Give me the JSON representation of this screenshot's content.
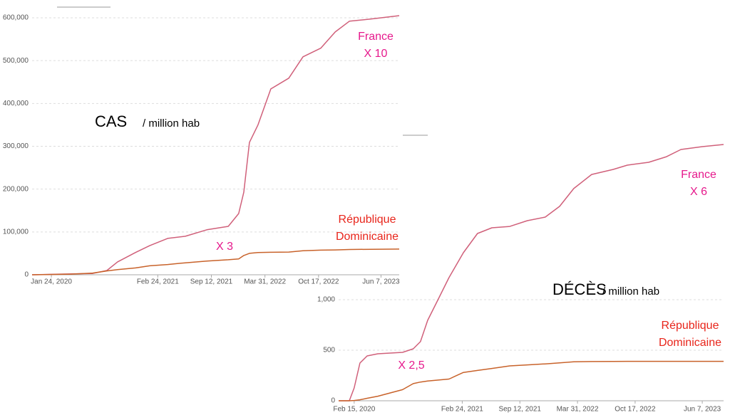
{
  "chart_data": [
    {
      "type": "line",
      "xlim": [
        "Nov 13, 2019",
        "Aug 14, 2023"
      ],
      "xticks": [
        "Jan 24, 2020",
        "Feb 24, 2021",
        "Sep 12, 2021",
        "Mar 31, 2022",
        "Oct 17, 2022",
        "Jun 7, 2023"
      ],
      "ylim": [
        0,
        600000
      ],
      "yticks": [
        0,
        {
          "value": 100000,
          "label": "100,000"
        },
        {
          "value": 200000,
          "label": "200,000"
        },
        {
          "value": 300000,
          "label": "300,000"
        },
        {
          "value": 400000,
          "label": "400,000"
        },
        {
          "value": 500000,
          "label": "500,000"
        },
        {
          "value": 600000,
          "label": "600,000"
        }
      ],
      "grid": true,
      "x": [
        "Nov 13, 2019",
        "Apr 7, 2020",
        "Jun 26, 2020",
        "Aug 18, 2020",
        "Sep 27, 2020",
        "Dec 3, 2020",
        "Jan 25, 2021",
        "Apr 2, 2021",
        "Jun 7, 2021",
        "Aug 26, 2021",
        "Nov 14, 2021",
        "Dec 23, 2021",
        "Jan 11, 2022",
        "Feb 1, 2022",
        "Mar 5, 2022",
        "Apr 22, 2022",
        "Jun 28, 2022",
        "Aug 20, 2022",
        "Oct 25, 2022",
        "Dec 18, 2022",
        "Feb 9, 2023",
        "Apr 29, 2023",
        "Aug 14, 2023"
      ],
      "series": [
        {
          "color": "#d0607a",
          "values": [
            0,
            2000,
            3000,
            10000,
            30000,
            52000,
            68000,
            85000,
            90000,
            105000,
            113000,
            143000,
            193000,
            309000,
            350000,
            434000,
            459000,
            509000,
            529000,
            567000,
            592000,
            597000,
            605000
          ]
        },
        {
          "color": "#c8622a",
          "values": [
            0,
            1500,
            4000,
            9000,
            12000,
            16000,
            21000,
            24000,
            28000,
            32000,
            35000,
            37000,
            45000,
            50000,
            52000,
            52500,
            53000,
            56000,
            57500,
            58000,
            59000,
            59500,
            60000
          ]
        }
      ],
      "annotations": [
        {
          "text": "CAS",
          "color": "#000000"
        },
        {
          "text": "/ million hab",
          "color": "#000000"
        },
        {
          "text": "France",
          "color": "#e6198c"
        },
        {
          "text": "X 10",
          "color": "#e6198c"
        },
        {
          "text": "République",
          "color": "#e8251b"
        },
        {
          "text": "Dominicaine",
          "color": "#e8251b"
        },
        {
          "text": "X 3",
          "color": "#e6198c"
        }
      ]
    },
    {
      "type": "line",
      "xlim": [
        "Dec 23, 2019",
        "Aug 20, 2023"
      ],
      "xticks": [
        "Feb 15, 2020",
        "Feb 24, 2021",
        "Sep 12, 2021",
        "Mar 31, 2022",
        "Oct 17, 2022",
        "Jun 7, 2023"
      ],
      "ylim": [
        0,
        2500
      ],
      "yticks": [
        0,
        500,
        {
          "value": 1000,
          "label": "1,000"
        }
      ],
      "grid": true,
      "x": [
        "Dec 23, 2019",
        "Jan 29, 2020",
        "Feb 15, 2020",
        "Mar 6, 2020",
        "Mar 31, 2020",
        "May 7, 2020",
        "Aug 1, 2020",
        "Sep 7, 2020",
        "Oct 2, 2020",
        "Oct 27, 2020",
        "Dec 3, 2020",
        "Jan 9, 2021",
        "Feb 28, 2021",
        "Apr 18, 2021",
        "Jun 7, 2021",
        "Aug 8, 2021",
        "Oct 8, 2021",
        "Dec 9, 2021",
        "Jan 28, 2022",
        "Mar 18, 2022",
        "May 19, 2022",
        "Aug 2, 2022",
        "Sep 20, 2022",
        "Dec 3, 2022",
        "Feb 3, 2023",
        "Mar 25, 2023",
        "Jun 7, 2023",
        "Aug 20, 2023"
      ],
      "series": [
        {
          "color": "#d0607a",
          "values": [
            0,
            0,
            127,
            373,
            444,
            465,
            479,
            514,
            585,
            796,
            1007,
            1218,
            1465,
            1655,
            1711,
            1725,
            1782,
            1817,
            1923,
            2099,
            2239,
            2289,
            2331,
            2359,
            2415,
            2486,
            2514,
            2535
          ]
        },
        {
          "color": "#c8622a",
          "values": [
            0,
            0,
            3,
            10,
            25,
            45,
            110,
            170,
            185,
            195,
            205,
            215,
            280,
            300,
            320,
            345,
            355,
            365,
            375,
            385,
            388,
            389,
            390,
            390,
            390,
            390,
            390,
            390
          ]
        }
      ],
      "annotations": [
        {
          "text": "DÉCÈS",
          "color": "#000000"
        },
        {
          "text": "/ million hab",
          "color": "#000000"
        },
        {
          "text": "France",
          "color": "#e6198c"
        },
        {
          "text": "X 6",
          "color": "#e6198c"
        },
        {
          "text": "République",
          "color": "#e8251b"
        },
        {
          "text": "Dominicaine",
          "color": "#e8251b"
        },
        {
          "text": "X 2,5",
          "color": "#e6198c"
        }
      ]
    }
  ]
}
